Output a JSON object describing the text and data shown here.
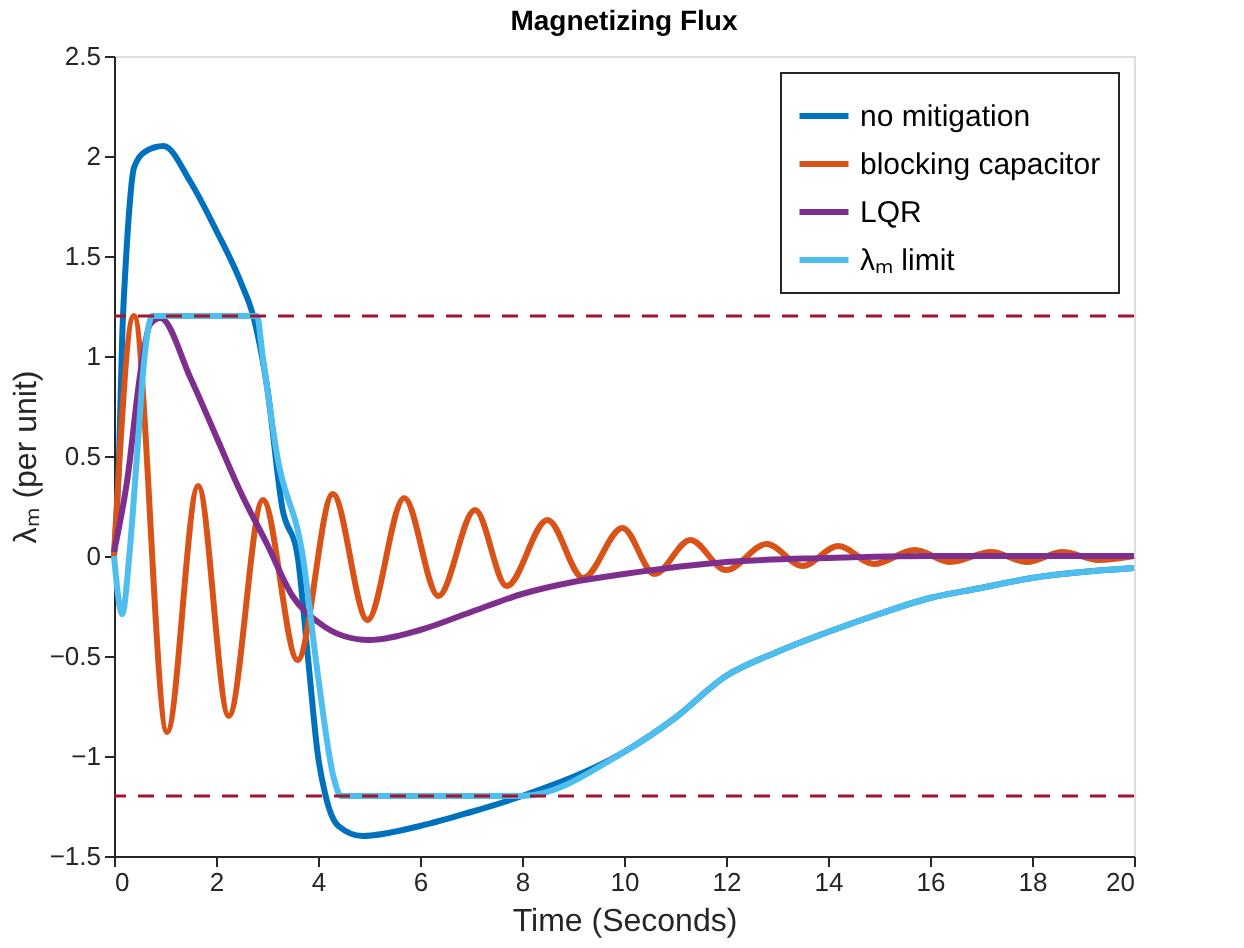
{
  "chart_data": {
    "type": "line",
    "title": "Magnetizing Flux",
    "xlabel": "Time (Seconds)",
    "ylabel": "λₘ (per unit)",
    "xlim": [
      0,
      20
    ],
    "ylim": [
      -1.5,
      2.5
    ],
    "xticks": [
      0,
      2,
      4,
      6,
      8,
      10,
      12,
      14,
      16,
      18,
      20
    ],
    "yticks": [
      -1.5,
      -1,
      -0.5,
      0,
      0.5,
      1,
      1.5,
      2,
      2.5
    ],
    "grid": false,
    "legend": "top right",
    "line_style": "solid",
    "marker": "none",
    "series": [
      {
        "name": "no mitigation",
        "color": "#0072bd",
        "x": [
          0,
          0.1,
          0.16,
          0.23,
          0.29,
          0.39,
          0.6,
          0.97,
          1.5,
          2,
          2.5,
          2.73,
          3,
          3.3,
          3.6,
          3.8,
          4.0,
          4.15,
          4.4,
          4.87,
          6,
          7,
          8,
          10,
          11,
          12,
          13,
          14,
          15,
          16,
          17,
          18,
          20
        ],
        "values": [
          0,
          0.5,
          1.09,
          1.46,
          1.7,
          1.94,
          2.02,
          2.05,
          1.87,
          1.63,
          1.36,
          1.2,
          0.85,
          0.24,
          0,
          -0.5,
          -1.0,
          -1.2,
          -1.35,
          -1.4,
          -1.35,
          -1.28,
          -1.2,
          -0.98,
          -0.81,
          -0.6,
          -0.48,
          -0.38,
          -0.29,
          -0.21,
          -0.16,
          -0.11,
          -0.06
        ]
      },
      {
        "name": "blocking capacitor",
        "color": "#d95319",
        "x": [
          0,
          0.39,
          1.04,
          1.65,
          2.25,
          2.92,
          3.6,
          4.29,
          4.97,
          5.69,
          6.36,
          7.08,
          7.7,
          8.5,
          9.2,
          9.97,
          10.6,
          11.3,
          12.0,
          12.8,
          13.5,
          14.2,
          14.9,
          15.7,
          16.4,
          17.2,
          17.9,
          18.6,
          19.3,
          20
        ],
        "values": [
          0,
          1.2,
          -0.88,
          0.35,
          -0.8,
          0.28,
          -0.52,
          0.31,
          -0.32,
          0.29,
          -0.2,
          0.23,
          -0.15,
          0.18,
          -0.11,
          0.14,
          -0.09,
          0.08,
          -0.07,
          0.06,
          -0.05,
          0.05,
          -0.04,
          0.03,
          -0.03,
          0.02,
          -0.03,
          0.02,
          -0.02,
          0
        ]
      },
      {
        "name": "LQR",
        "color": "#7e2f8e",
        "x": [
          0,
          0.26,
          0.52,
          0.71,
          0.91,
          1.5,
          2,
          2.5,
          3,
          3.5,
          4,
          4.5,
          5,
          6,
          7,
          8,
          9,
          10,
          12,
          14,
          16,
          20
        ],
        "values": [
          0.02,
          0.38,
          0.92,
          1.16,
          1.19,
          0.89,
          0.6,
          0.31,
          0.06,
          -0.2,
          -0.33,
          -0.4,
          -0.42,
          -0.37,
          -0.28,
          -0.19,
          -0.13,
          -0.09,
          -0.03,
          -0.01,
          0,
          0
        ]
      },
      {
        "name": "λₘ limit",
        "color": "#4dbeee",
        "x": [
          0,
          0.16,
          0.3,
          0.45,
          0.6,
          0.75,
          2.8,
          2.92,
          3.2,
          3.7,
          4.0,
          4.3,
          4.45,
          8,
          10,
          11,
          12,
          13,
          14,
          15,
          16,
          17,
          18,
          20
        ],
        "values": [
          0,
          -0.29,
          0,
          0.5,
          1.0,
          1.2,
          1.2,
          0.99,
          0.5,
          0,
          -0.6,
          -1.1,
          -1.2,
          -1.2,
          -0.98,
          -0.81,
          -0.6,
          -0.48,
          -0.38,
          -0.29,
          -0.21,
          -0.16,
          -0.11,
          -0.06
        ]
      }
    ],
    "ref_lines": [
      {
        "axis": "y",
        "value": 1.2,
        "color": "#a2142f",
        "line_style": "dashed"
      },
      {
        "axis": "y",
        "value": -1.2,
        "color": "#a2142f",
        "line_style": "dashed"
      }
    ]
  }
}
